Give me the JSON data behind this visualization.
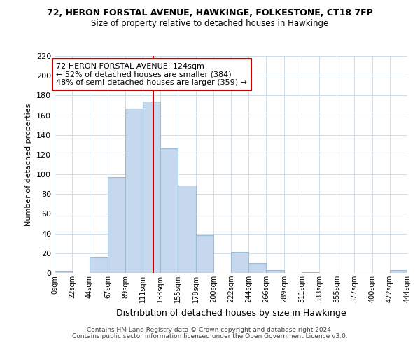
{
  "title": "72, HERON FORSTAL AVENUE, HAWKINGE, FOLKESTONE, CT18 7FP",
  "subtitle": "Size of property relative to detached houses in Hawkinge",
  "xlabel": "Distribution of detached houses by size in Hawkinge",
  "ylabel": "Number of detached properties",
  "bar_edges": [
    0,
    22,
    44,
    67,
    89,
    111,
    133,
    155,
    178,
    200,
    222,
    244,
    266,
    289,
    311,
    333,
    355,
    377,
    400,
    422,
    444
  ],
  "bar_heights": [
    2,
    0,
    16,
    97,
    167,
    174,
    126,
    89,
    38,
    0,
    21,
    10,
    3,
    0,
    1,
    0,
    0,
    0,
    0,
    3
  ],
  "bar_color": "#c5d8ed",
  "bar_edge_color": "#9bbcd4",
  "tick_labels": [
    "0sqm",
    "22sqm",
    "44sqm",
    "67sqm",
    "89sqm",
    "111sqm",
    "133sqm",
    "155sqm",
    "178sqm",
    "200sqm",
    "222sqm",
    "244sqm",
    "266sqm",
    "289sqm",
    "311sqm",
    "333sqm",
    "355sqm",
    "377sqm",
    "400sqm",
    "422sqm",
    "444sqm"
  ],
  "property_size": 124,
  "vline_color": "#cc0000",
  "ylim": [
    0,
    220
  ],
  "yticks": [
    0,
    20,
    40,
    60,
    80,
    100,
    120,
    140,
    160,
    180,
    200,
    220
  ],
  "annotation_line1": "72 HERON FORSTAL AVENUE: 124sqm",
  "annotation_line2": "← 52% of detached houses are smaller (384)",
  "annotation_line3": "48% of semi-detached houses are larger (359) →",
  "footnote1": "Contains HM Land Registry data © Crown copyright and database right 2024.",
  "footnote2": "Contains public sector information licensed under the Open Government Licence v3.0.",
  "bg_color": "#ffffff",
  "grid_color": "#d0dde8"
}
